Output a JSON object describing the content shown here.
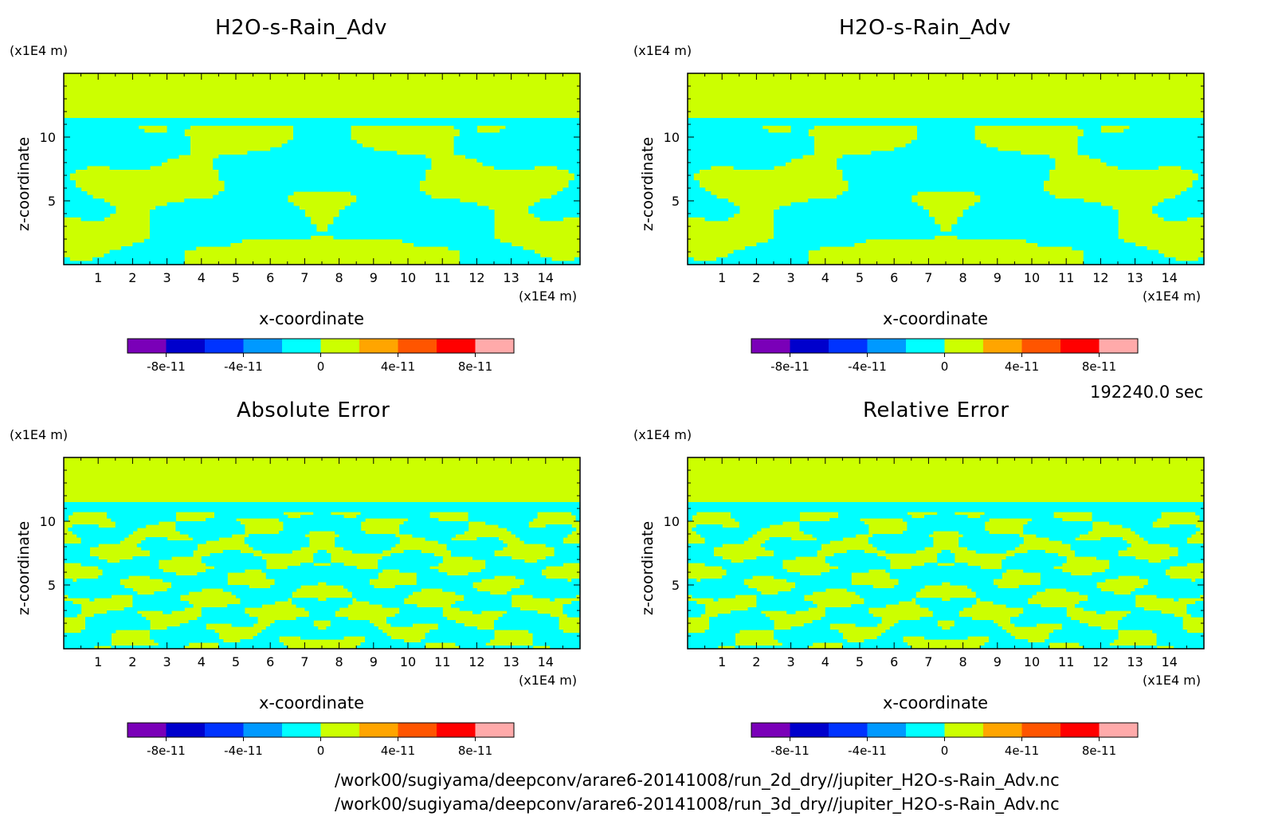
{
  "time_label": "192240.0 sec",
  "footer": {
    "file_2d": "/work00/sugiyama/deepconv/arare6-20141008/run_2d_dry//jupiter_H2O-s-Rain_Adv.nc",
    "file_3d": "/work00/sugiyama/deepconv/arare6-20141008/run_3d_dry//jupiter_H2O-s-Rain_Adv.nc"
  },
  "colors": {
    "cyan": "#00ffff",
    "yellowgreen": "#ccff00",
    "frame": "#000000"
  },
  "colorbar": {
    "colors": [
      "#7a00b8",
      "#0000cc",
      "#0033ff",
      "#0099ff",
      "#00ffff",
      "#ccff00",
      "#ffa500",
      "#ff5500",
      "#ff0000",
      "#ffaaaa"
    ],
    "tick_labels": [
      "-8e-11",
      "-4e-11",
      "0",
      "4e-11",
      "8e-11"
    ]
  },
  "chart_data": [
    {
      "type": "heatmap",
      "title": "H2O-s-Rain_Adv",
      "xlabel": "x-coordinate",
      "ylabel": "z-coordinate",
      "x_units": "(x1E4 m)",
      "y_units": "(x1E4 m)",
      "xlim": [
        0,
        15
      ],
      "ylim": [
        0,
        15
      ],
      "x_ticks": [
        1,
        2,
        3,
        4,
        5,
        6,
        7,
        8,
        9,
        10,
        11,
        12,
        13,
        14
      ],
      "y_ticks": [
        5,
        10
      ],
      "field_levels": {
        "below_top_layer": "0",
        "above_11.5": "0 to 2e-11"
      },
      "pattern": "coarse"
    },
    {
      "type": "heatmap",
      "title": "H2O-s-Rain_Adv",
      "xlabel": "x-coordinate",
      "ylabel": "z-coordinate",
      "x_units": "(x1E4 m)",
      "y_units": "(x1E4 m)",
      "xlim": [
        0,
        15
      ],
      "ylim": [
        0,
        15
      ],
      "x_ticks": [
        1,
        2,
        3,
        4,
        5,
        6,
        7,
        8,
        9,
        10,
        11,
        12,
        13,
        14
      ],
      "y_ticks": [
        5,
        10
      ],
      "field_levels": {
        "below_top_layer": "0",
        "above_11.5": "0 to 2e-11"
      },
      "pattern": "coarse"
    },
    {
      "type": "heatmap",
      "title": "Absolute Error",
      "xlabel": "x-coordinate",
      "ylabel": "z-coordinate",
      "x_units": "(x1E4 m)",
      "y_units": "(x1E4 m)",
      "xlim": [
        0,
        15
      ],
      "ylim": [
        0,
        15
      ],
      "x_ticks": [
        1,
        2,
        3,
        4,
        5,
        6,
        7,
        8,
        9,
        10,
        11,
        12,
        13,
        14
      ],
      "y_ticks": [
        5,
        10
      ],
      "field_levels": {
        "below_top_layer": "0",
        "above_11.5": "0 to 2e-11"
      },
      "pattern": "fine"
    },
    {
      "type": "heatmap",
      "title": "Relative Error",
      "xlabel": "x-coordinate",
      "ylabel": "z-coordinate",
      "x_units": "(x1E4 m)",
      "y_units": "(x1E4 m)",
      "xlim": [
        0,
        15
      ],
      "ylim": [
        0,
        15
      ],
      "x_ticks": [
        1,
        2,
        3,
        4,
        5,
        6,
        7,
        8,
        9,
        10,
        11,
        12,
        13,
        14
      ],
      "y_ticks": [
        5,
        10
      ],
      "field_levels": {
        "below_top_layer": "0",
        "above_11.5": "0 to 2e-11"
      },
      "pattern": "fine"
    }
  ]
}
